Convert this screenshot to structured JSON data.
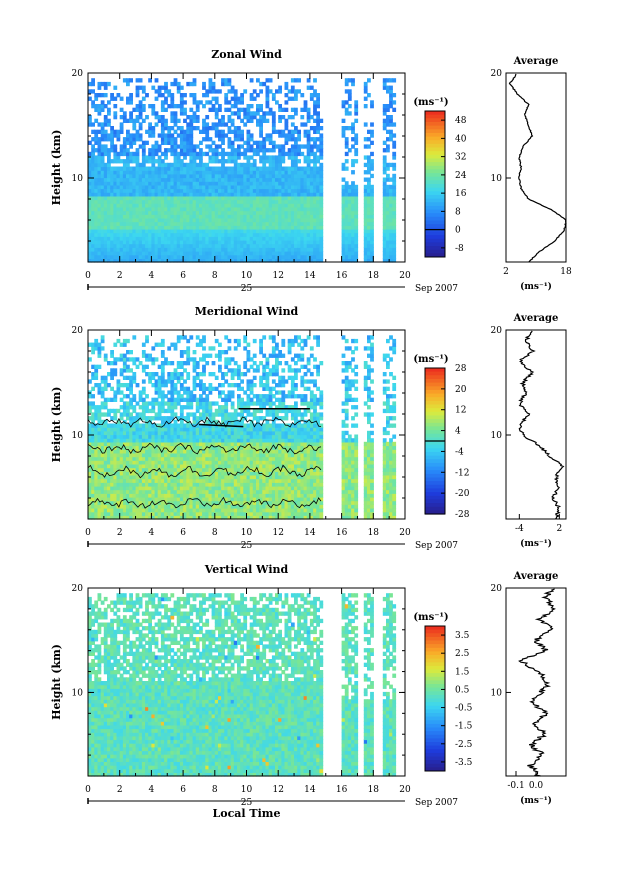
{
  "chart_data": [
    {
      "type": "heatmap",
      "title": "Zonal Wind",
      "ylabel": "Height (km)",
      "xlabel": "",
      "xlim": [
        0,
        20
      ],
      "ylim": [
        2,
        20
      ],
      "x_ticks": [
        "0",
        "2",
        "4",
        "6",
        "8",
        "10",
        "12",
        "14",
        "16",
        "18",
        "20"
      ],
      "y_ticks": [
        "10",
        "20"
      ],
      "date_label": "Sep 2007",
      "date_day": "25",
      "colorbar": {
        "unit": "(ms⁻¹)",
        "range": [
          -12,
          52
        ],
        "ticks": [
          "48",
          "40",
          "32",
          "24",
          "16",
          "8",
          "0",
          "-8"
        ],
        "contour_level": 0
      },
      "profile": {
        "title": "Average",
        "xlabel": "(ms⁻¹)",
        "xlim": [
          2,
          18
        ],
        "x_ticks": [
          "2",
          "18"
        ],
        "y_ticks": [
          "10",
          "20"
        ],
        "heights": [
          2,
          3,
          4,
          5,
          6,
          7,
          8,
          9,
          10,
          11,
          12,
          13,
          14,
          15,
          16,
          17,
          18,
          19,
          20
        ],
        "values": [
          8,
          11,
          15,
          17.5,
          18,
          14,
          8,
          6,
          5.5,
          6,
          5.5,
          6.5,
          9,
          8,
          7,
          8,
          5,
          3,
          5
        ]
      },
      "gaps_hours": [
        [
          14.9,
          15.8
        ],
        [
          17.05,
          17.35
        ],
        [
          18.15,
          18.45
        ]
      ]
    },
    {
      "type": "heatmap",
      "title": "Meridional Wind",
      "ylabel": "Height (km)",
      "xlabel": "",
      "xlim": [
        0,
        20
      ],
      "ylim": [
        2,
        20
      ],
      "x_ticks": [
        "0",
        "2",
        "4",
        "6",
        "8",
        "10",
        "12",
        "14",
        "16",
        "18",
        "20"
      ],
      "y_ticks": [
        "10",
        "20"
      ],
      "date_label": "Sep 2007",
      "date_day": "25",
      "colorbar": {
        "unit": "(ms⁻¹)",
        "range": [
          -28,
          28
        ],
        "ticks": [
          "28",
          "20",
          "12",
          "4",
          "-4",
          "-12",
          "-20",
          "-28"
        ],
        "contour_level": 0
      },
      "profile": {
        "title": "Average",
        "xlabel": "(ms⁻¹)",
        "xlim": [
          -6,
          3
        ],
        "x_ticks": [
          "-4",
          "2"
        ],
        "y_ticks": [
          "10",
          "20"
        ],
        "heights": [
          2,
          3,
          4,
          5,
          6,
          7,
          8,
          9,
          10,
          11,
          12,
          13,
          14,
          15,
          16,
          17,
          18,
          19,
          20
        ],
        "values": [
          1.5,
          2,
          1,
          2,
          1.5,
          2.5,
          0.5,
          -1,
          -3.5,
          -4,
          -2.5,
          -4,
          -3,
          -3.5,
          -2,
          -4,
          -2,
          -3,
          -2
        ]
      },
      "gaps_hours": [
        [
          14.9,
          15.8
        ],
        [
          17.05,
          17.35
        ],
        [
          18.15,
          18.45
        ]
      ]
    },
    {
      "type": "heatmap",
      "title": "Vertical Wind",
      "ylabel": "Height (km)",
      "xlabel": "Local Time",
      "xlim": [
        0,
        20
      ],
      "ylim": [
        2,
        20
      ],
      "x_ticks": [
        "0",
        "2",
        "4",
        "6",
        "8",
        "10",
        "12",
        "14",
        "16",
        "18",
        "20"
      ],
      "y_ticks": [
        "10",
        "20"
      ],
      "date_label": "Sep 2007",
      "date_day": "25",
      "colorbar": {
        "unit": "(ms⁻¹)",
        "range": [
          -4,
          4
        ],
        "ticks": [
          "3.5",
          "2.5",
          "1.5",
          "0.5",
          "-0.5",
          "-1.5",
          "-2.5",
          "-3.5"
        ]
      },
      "profile": {
        "title": "Average",
        "xlabel": "(ms⁻¹)",
        "xlim": [
          -0.15,
          0.15
        ],
        "x_ticks": [
          "-0.1",
          "0.0"
        ],
        "y_ticks": [
          "10",
          "20"
        ],
        "heights": [
          2,
          3,
          4,
          5,
          6,
          7,
          8,
          9,
          10,
          11,
          12,
          13,
          14,
          15,
          16,
          17,
          18,
          19,
          20
        ],
        "values": [
          0.02,
          -0.03,
          0.03,
          -0.02,
          0.04,
          0.0,
          0.05,
          -0.02,
          0.03,
          0.06,
          0.02,
          -0.08,
          0.05,
          0.0,
          0.08,
          0.02,
          0.1,
          0.05,
          0.08
        ]
      },
      "gaps_hours": [
        [
          14.9,
          15.8
        ],
        [
          17.05,
          17.35
        ],
        [
          18.15,
          18.45
        ]
      ]
    }
  ]
}
